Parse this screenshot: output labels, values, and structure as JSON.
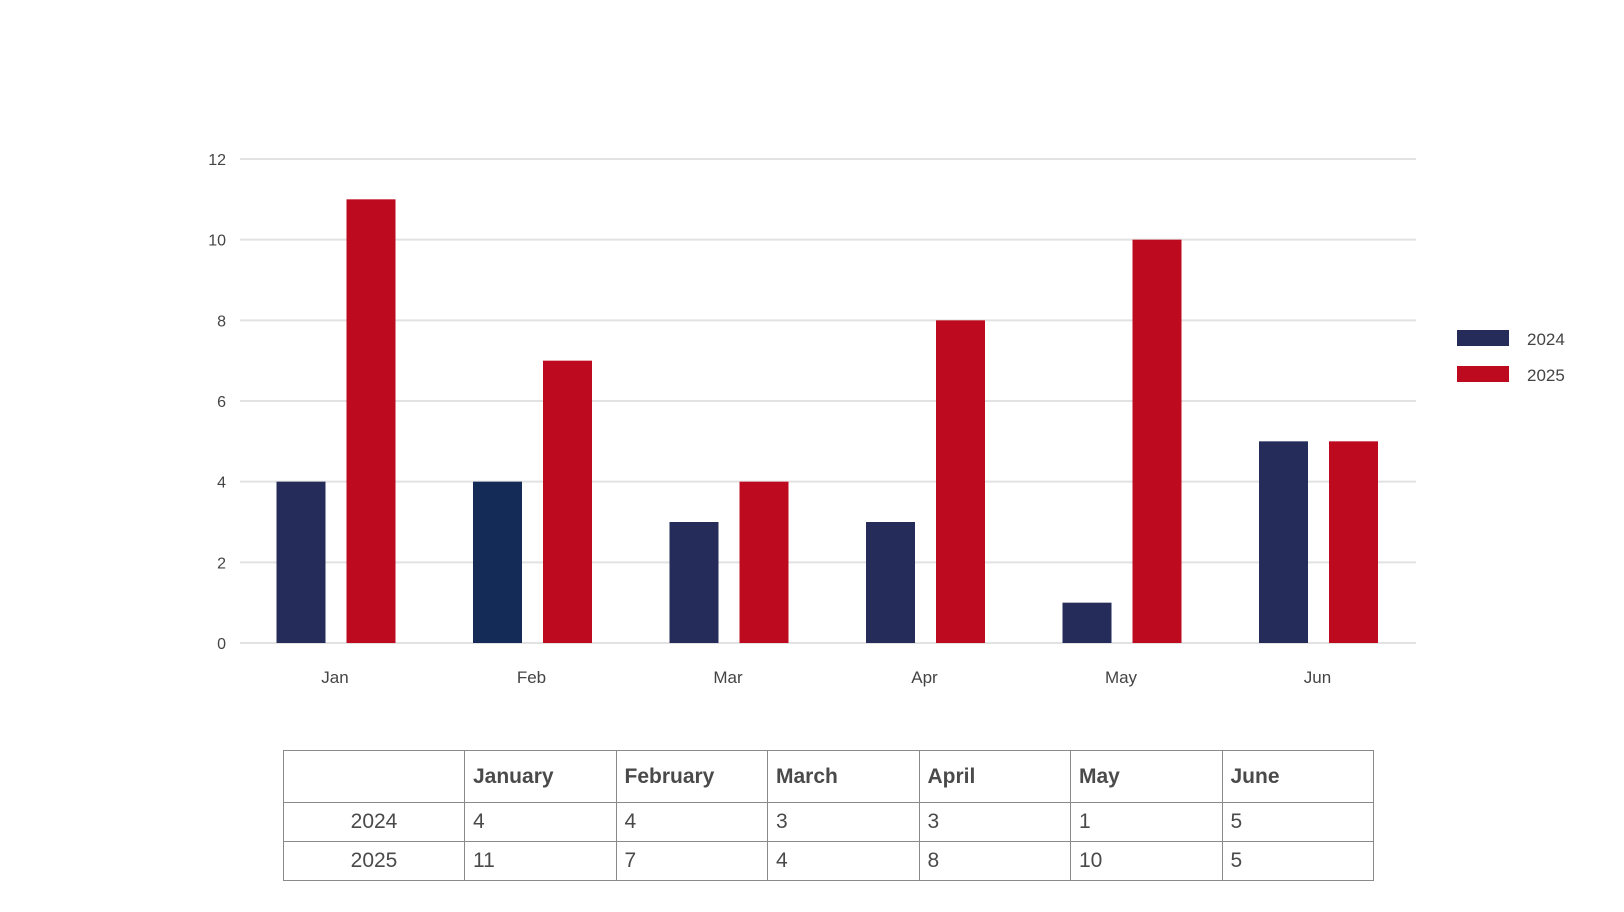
{
  "chart_data": {
    "type": "bar",
    "categories": [
      "Jan",
      "Feb",
      "Mar",
      "Apr",
      "May",
      "Jun"
    ],
    "series": [
      {
        "name": "2024",
        "values": [
          4,
          4,
          3,
          3,
          1,
          5
        ],
        "color": "#252c5a"
      },
      {
        "name": "2025",
        "values": [
          11,
          7,
          4,
          8,
          10,
          5
        ],
        "color": "#be0a1e"
      }
    ],
    "feb_2024_color": "#142b58",
    "y_ticks": [
      0,
      2,
      4,
      6,
      8,
      10,
      12
    ],
    "ylim": [
      0,
      12
    ],
    "grid": true,
    "legend": "right"
  },
  "table": {
    "headers": [
      "",
      "January",
      "February",
      "March",
      "April",
      "May",
      "June"
    ],
    "rows": [
      {
        "label": "2024",
        "values": [
          "4",
          "4",
          "3",
          "3",
          "1",
          "5"
        ]
      },
      {
        "label": "2025",
        "values": [
          "11",
          "7",
          "4",
          "8",
          "10",
          "5"
        ]
      }
    ]
  }
}
